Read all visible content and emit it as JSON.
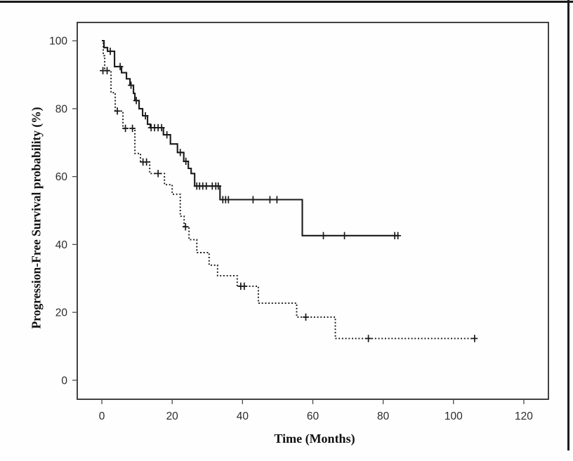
{
  "chart_data": {
    "type": "line",
    "subtype": "kaplan-meier-step-curves",
    "title": "",
    "xlabel": "Time (Months)",
    "ylabel": "Progression-Free Survival probability (%)",
    "xticks": [
      0,
      20,
      40,
      60,
      80,
      100,
      120
    ],
    "yticks": [
      0,
      20,
      40,
      60,
      80,
      100
    ],
    "xlim": [
      -7,
      127
    ],
    "ylim": [
      -5.6,
      105.4
    ],
    "grid": false,
    "legend": "none",
    "series": [
      {
        "name": "group-solid-line",
        "line_style": "solid",
        "end_time": 84.3,
        "steps": [
          [
            0,
            100
          ],
          [
            0.6,
            98
          ],
          [
            1.6,
            96.9
          ],
          [
            3.6,
            92.4
          ],
          [
            5.6,
            90.6
          ],
          [
            7,
            88.8
          ],
          [
            8,
            86.9
          ],
          [
            9,
            84.5
          ],
          [
            9.4,
            82.4
          ],
          [
            10.6,
            80
          ],
          [
            11.6,
            77.9
          ],
          [
            13,
            75.4
          ],
          [
            13.8,
            74.4
          ],
          [
            17.5,
            72.3
          ],
          [
            19.5,
            69.6
          ],
          [
            21.5,
            67.1
          ],
          [
            23.3,
            64.5
          ],
          [
            24.6,
            62.4
          ],
          [
            25.4,
            60.9
          ],
          [
            26.4,
            57.2
          ],
          [
            33.6,
            53.2
          ],
          [
            57,
            42.6
          ]
        ],
        "censor_marks": [
          [
            2.4,
            96.9
          ],
          [
            5.2,
            92.4
          ],
          [
            8.3,
            86.9
          ],
          [
            9.8,
            82.4
          ],
          [
            12.4,
            77.9
          ],
          [
            14,
            74.4
          ],
          [
            15,
            74.4
          ],
          [
            16,
            74.4
          ],
          [
            17,
            74.4
          ],
          [
            18.5,
            72.3
          ],
          [
            22.3,
            67.1
          ],
          [
            23.9,
            64.5
          ],
          [
            27,
            57.2
          ],
          [
            27.8,
            57.2
          ],
          [
            28.7,
            57.2
          ],
          [
            29.7,
            57.2
          ],
          [
            31.4,
            57.2
          ],
          [
            32.4,
            57.2
          ],
          [
            33.1,
            57.2
          ],
          [
            34.4,
            53.2
          ],
          [
            35.2,
            53.2
          ],
          [
            36,
            53.2
          ],
          [
            43,
            53.2
          ],
          [
            47.8,
            53.2
          ],
          [
            49.8,
            53.2
          ],
          [
            63,
            42.6
          ],
          [
            69,
            42.6
          ],
          [
            83.3,
            42.6
          ],
          [
            84.2,
            42.6
          ]
        ]
      },
      {
        "name": "group-dashed-line",
        "line_style": "dashed",
        "end_time": 106.4,
        "steps": [
          [
            0,
            100
          ],
          [
            0.4,
            95.6
          ],
          [
            0.8,
            91.2
          ],
          [
            2.6,
            84.7
          ],
          [
            3.8,
            79.3
          ],
          [
            6,
            74.2
          ],
          [
            9.4,
            66.8
          ],
          [
            11,
            64.3
          ],
          [
            13.6,
            60.9
          ],
          [
            17.8,
            57.6
          ],
          [
            20,
            54.8
          ],
          [
            22.3,
            48.3
          ],
          [
            23.4,
            45.2
          ],
          [
            24.8,
            41.4
          ],
          [
            27,
            37.6
          ],
          [
            30.5,
            33.9
          ],
          [
            32.9,
            30.8
          ],
          [
            38.5,
            27.7
          ],
          [
            44.5,
            22.7
          ],
          [
            55.4,
            18.6
          ],
          [
            66.4,
            12.3
          ]
        ],
        "censor_marks": [
          [
            0.3,
            91.2
          ],
          [
            1.5,
            91.2
          ],
          [
            4.4,
            79.3
          ],
          [
            6.7,
            74.2
          ],
          [
            8.7,
            74.2
          ],
          [
            11.7,
            64.3
          ],
          [
            12.7,
            64.3
          ],
          [
            16,
            60.9
          ],
          [
            23.8,
            45.2
          ],
          [
            39.5,
            27.7
          ],
          [
            40.5,
            27.7
          ],
          [
            58,
            18.6
          ],
          [
            75.8,
            12.3
          ],
          [
            106,
            12.3
          ]
        ]
      }
    ],
    "colors": {
      "curve": "#1a1a1a",
      "axis_line": "#2d2d2d",
      "tick_mark": "#4a4a4a",
      "tick_label": "#2b2b2b",
      "axis_title": "#101010",
      "scan_border": "#191919",
      "background": "#fefefe"
    }
  }
}
